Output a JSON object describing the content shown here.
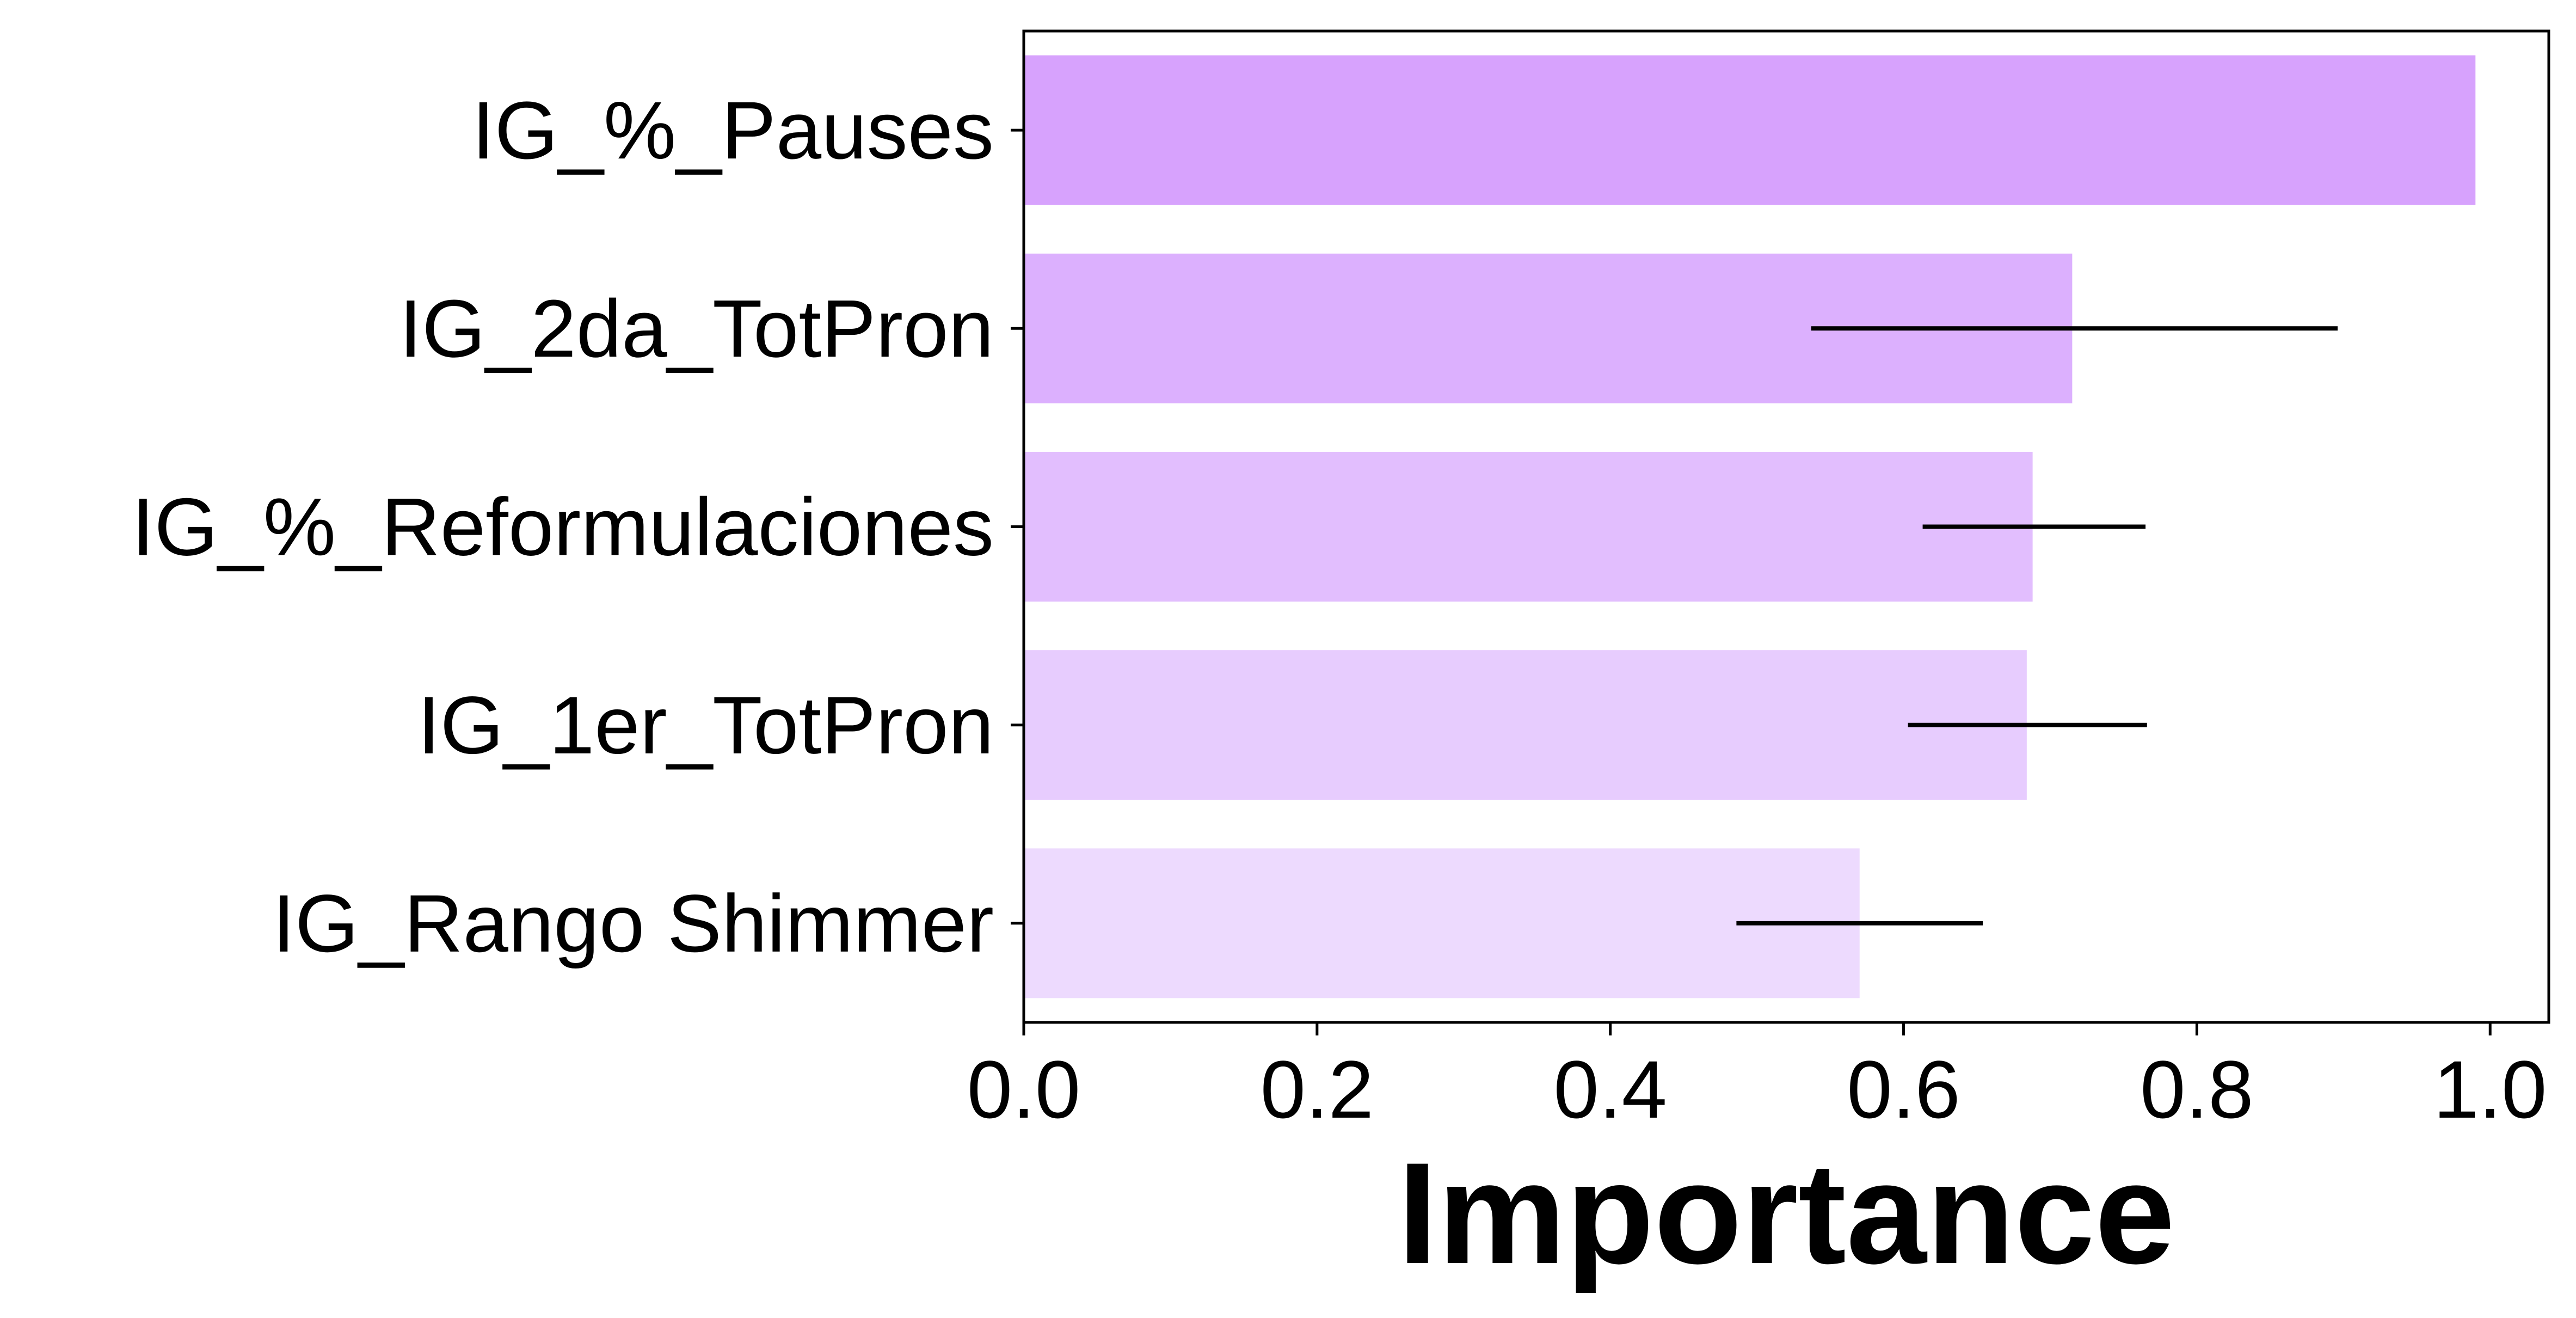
{
  "chart_data": {
    "type": "bar",
    "orientation": "horizontal",
    "title": "",
    "xlabel": "Importance",
    "ylabel": "",
    "categories": [
      "IG_%_Pauses",
      "IG_2da_TotPron",
      "IG_%_Reformulaciones",
      "IG_1er_TotPron",
      "IG_Rango Shimmer"
    ],
    "values": [
      0.99,
      0.715,
      0.688,
      0.684,
      0.57
    ],
    "error_bars": [
      null,
      [
        0.537,
        0.896
      ],
      [
        0.613,
        0.765
      ],
      [
        0.603,
        0.766
      ],
      [
        0.486,
        0.654
      ]
    ],
    "bar_colors": [
      "#d7a2fd",
      "#dcb0fe",
      "#e2befe",
      "#e7ccfe",
      "#eddafe"
    ],
    "error_bar_color": "#000000",
    "xlim": [
      0.0,
      1.04
    ],
    "xticks": [
      0.0,
      0.2,
      0.4,
      0.6,
      0.8,
      1.0
    ],
    "xtick_labels": [
      "0.0",
      "0.2",
      "0.4",
      "0.6",
      "0.8",
      "1.0"
    ],
    "grid": false,
    "legend": "none"
  }
}
